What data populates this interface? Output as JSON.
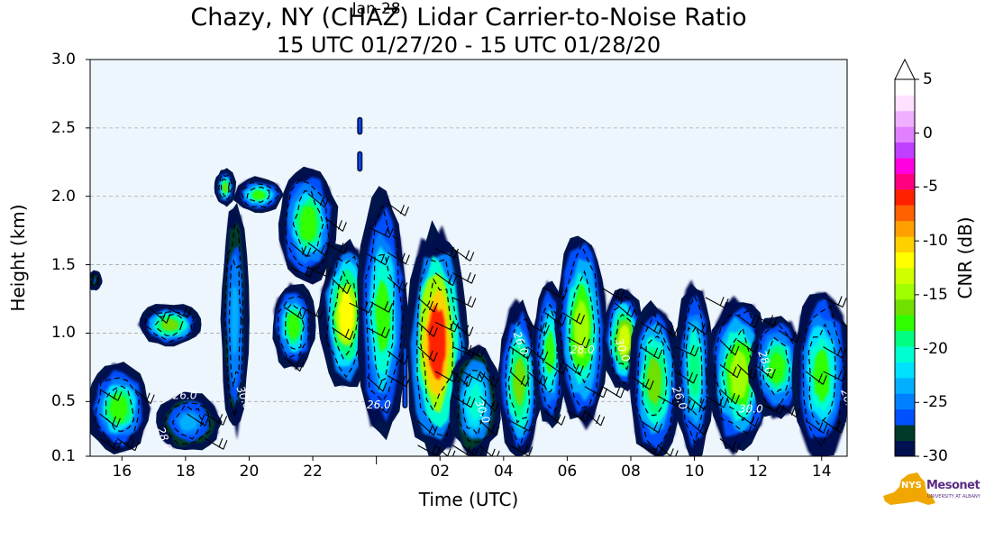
{
  "title": "Chazy, NY (CHAZ) Lidar Carrier-to-Noise Ratio",
  "subtitle": "15 UTC 01/27/20 - 15 UTC 01/28/20",
  "chart_data": {
    "type": "heatmap",
    "title": "Chazy, NY (CHAZ) Lidar Carrier-to-Noise Ratio",
    "subtitle": "15 UTC 01/27/20 - 15 UTC 01/28/20",
    "xlabel": "Time (UTC)",
    "ylabel": "Height (km)",
    "xlim": [
      15.0,
      38.8
    ],
    "ylim": [
      0.1,
      3.0
    ],
    "xticks": [
      {
        "x": 16,
        "label": "16"
      },
      {
        "x": 18,
        "label": "18"
      },
      {
        "x": 20,
        "label": "20"
      },
      {
        "x": 22,
        "label": "22"
      },
      {
        "x": 24,
        "label": "Jan-28",
        "major": true
      },
      {
        "x": 26,
        "label": "02"
      },
      {
        "x": 28,
        "label": "04"
      },
      {
        "x": 30,
        "label": "06"
      },
      {
        "x": 32,
        "label": "08"
      },
      {
        "x": 34,
        "label": "10"
      },
      {
        "x": 36,
        "label": "12"
      },
      {
        "x": 38,
        "label": "14"
      }
    ],
    "yticks": [
      0.1,
      0.5,
      1.0,
      1.5,
      2.0,
      2.5,
      3.0
    ],
    "ytick_labels": [
      "0.1",
      "0.5",
      "1.0",
      "1.5",
      "2.0",
      "2.5",
      "3.0"
    ],
    "grid": "horizontal dashed",
    "colorbar": {
      "label": "CNR (dB)",
      "range": [
        -30,
        5
      ],
      "ticks": [
        5,
        0,
        -5,
        -10,
        -15,
        -20,
        -25,
        -30
      ],
      "tick_labels": [
        "5",
        "0",
        "-5",
        "-10",
        "-15",
        "-20",
        "-25",
        "-30"
      ],
      "colors": [
        "#001050",
        "#003a2a",
        "#0050ff",
        "#0080ff",
        "#00b0ff",
        "#00e0ff",
        "#00ffd0",
        "#00ff80",
        "#30ff00",
        "#70e000",
        "#a0ff00",
        "#d0ff00",
        "#ffff00",
        "#ffd000",
        "#ffa000",
        "#ff6000",
        "#ff2000",
        "#ff0080",
        "#ff00e0",
        "#c040ff",
        "#e080ff",
        "#f0b0ff",
        "#ffe0ff",
        "#ffffff"
      ]
    },
    "contour_labels": [
      "26.0",
      "30.0",
      "28.0",
      "26.0",
      "30.0",
      "26.0",
      "28.0",
      "30.0",
      "26.0",
      "30.0",
      "28.0",
      "26.0"
    ],
    "cloud_regions": [
      {
        "t0": 15.0,
        "t1": 15.3,
        "h0": 1.33,
        "h1": 1.44,
        "peak": -27
      },
      {
        "t0": 15.0,
        "t1": 16.8,
        "h0": 0.15,
        "h1": 0.75,
        "peak": -17
      },
      {
        "t0": 16.6,
        "t1": 18.4,
        "h0": 0.92,
        "h1": 1.2,
        "peak": -16
      },
      {
        "t0": 17.2,
        "t1": 19.0,
        "h0": 0.15,
        "h1": 0.55,
        "peak": -24
      },
      {
        "t0": 19.0,
        "t1": 19.5,
        "h0": 1.95,
        "h1": 2.18,
        "peak": -16
      },
      {
        "t0": 19.2,
        "t1": 19.9,
        "h0": 0.3,
        "h1": 1.9,
        "peak": -23
      },
      {
        "t0": 19.6,
        "t1": 21.0,
        "h0": 1.9,
        "h1": 2.12,
        "peak": -18
      },
      {
        "t0": 20.8,
        "t1": 22.0,
        "h0": 0.75,
        "h1": 1.35,
        "peak": -17
      },
      {
        "t0": 21.0,
        "t1": 22.7,
        "h0": 1.4,
        "h1": 2.2,
        "peak": -17
      },
      {
        "t0": 22.3,
        "t1": 23.8,
        "h0": 0.6,
        "h1": 1.65,
        "peak": -12
      },
      {
        "t0": 23.5,
        "t1": 24.9,
        "h0": 0.25,
        "h1": 2.0,
        "peak": -18
      },
      {
        "t0": 25.0,
        "t1": 26.8,
        "h0": 0.1,
        "h1": 1.75,
        "peak": -6
      },
      {
        "t0": 26.4,
        "t1": 27.8,
        "h0": 0.1,
        "h1": 0.9,
        "peak": -20
      },
      {
        "t0": 27.9,
        "t1": 29.1,
        "h0": 0.1,
        "h1": 1.2,
        "peak": -16
      },
      {
        "t0": 29.0,
        "t1": 29.9,
        "h0": 0.35,
        "h1": 1.35,
        "peak": -18
      },
      {
        "t0": 29.7,
        "t1": 31.2,
        "h0": 0.35,
        "h1": 1.72,
        "peak": -14
      },
      {
        "t0": 31.2,
        "t1": 32.4,
        "h0": 0.6,
        "h1": 1.3,
        "peak": -13
      },
      {
        "t0": 32.0,
        "t1": 33.5,
        "h0": 0.1,
        "h1": 1.2,
        "peak": -16
      },
      {
        "t0": 33.5,
        "t1": 34.5,
        "h0": 0.1,
        "h1": 1.35,
        "peak": -19
      },
      {
        "t0": 34.5,
        "t1": 36.3,
        "h0": 0.15,
        "h1": 1.25,
        "peak": -14
      },
      {
        "t0": 35.8,
        "t1": 37.4,
        "h0": 0.4,
        "h1": 1.1,
        "peak": -17
      },
      {
        "t0": 37.2,
        "t1": 38.8,
        "h0": 0.1,
        "h1": 1.3,
        "peak": -18
      }
    ],
    "isolated_echoes": [
      {
        "t": 23.48,
        "h0": 2.45,
        "h1": 2.58,
        "value": -27
      },
      {
        "t": 23.48,
        "h0": 2.18,
        "h1": 2.33,
        "value": -26
      },
      {
        "t": 24.9,
        "h0": 0.45,
        "h1": 0.9,
        "value": -26
      }
    ]
  },
  "logo": {
    "badge": "NYS",
    "name": "Mesonet",
    "sub": "UNIVERSITY AT ALBANY"
  }
}
